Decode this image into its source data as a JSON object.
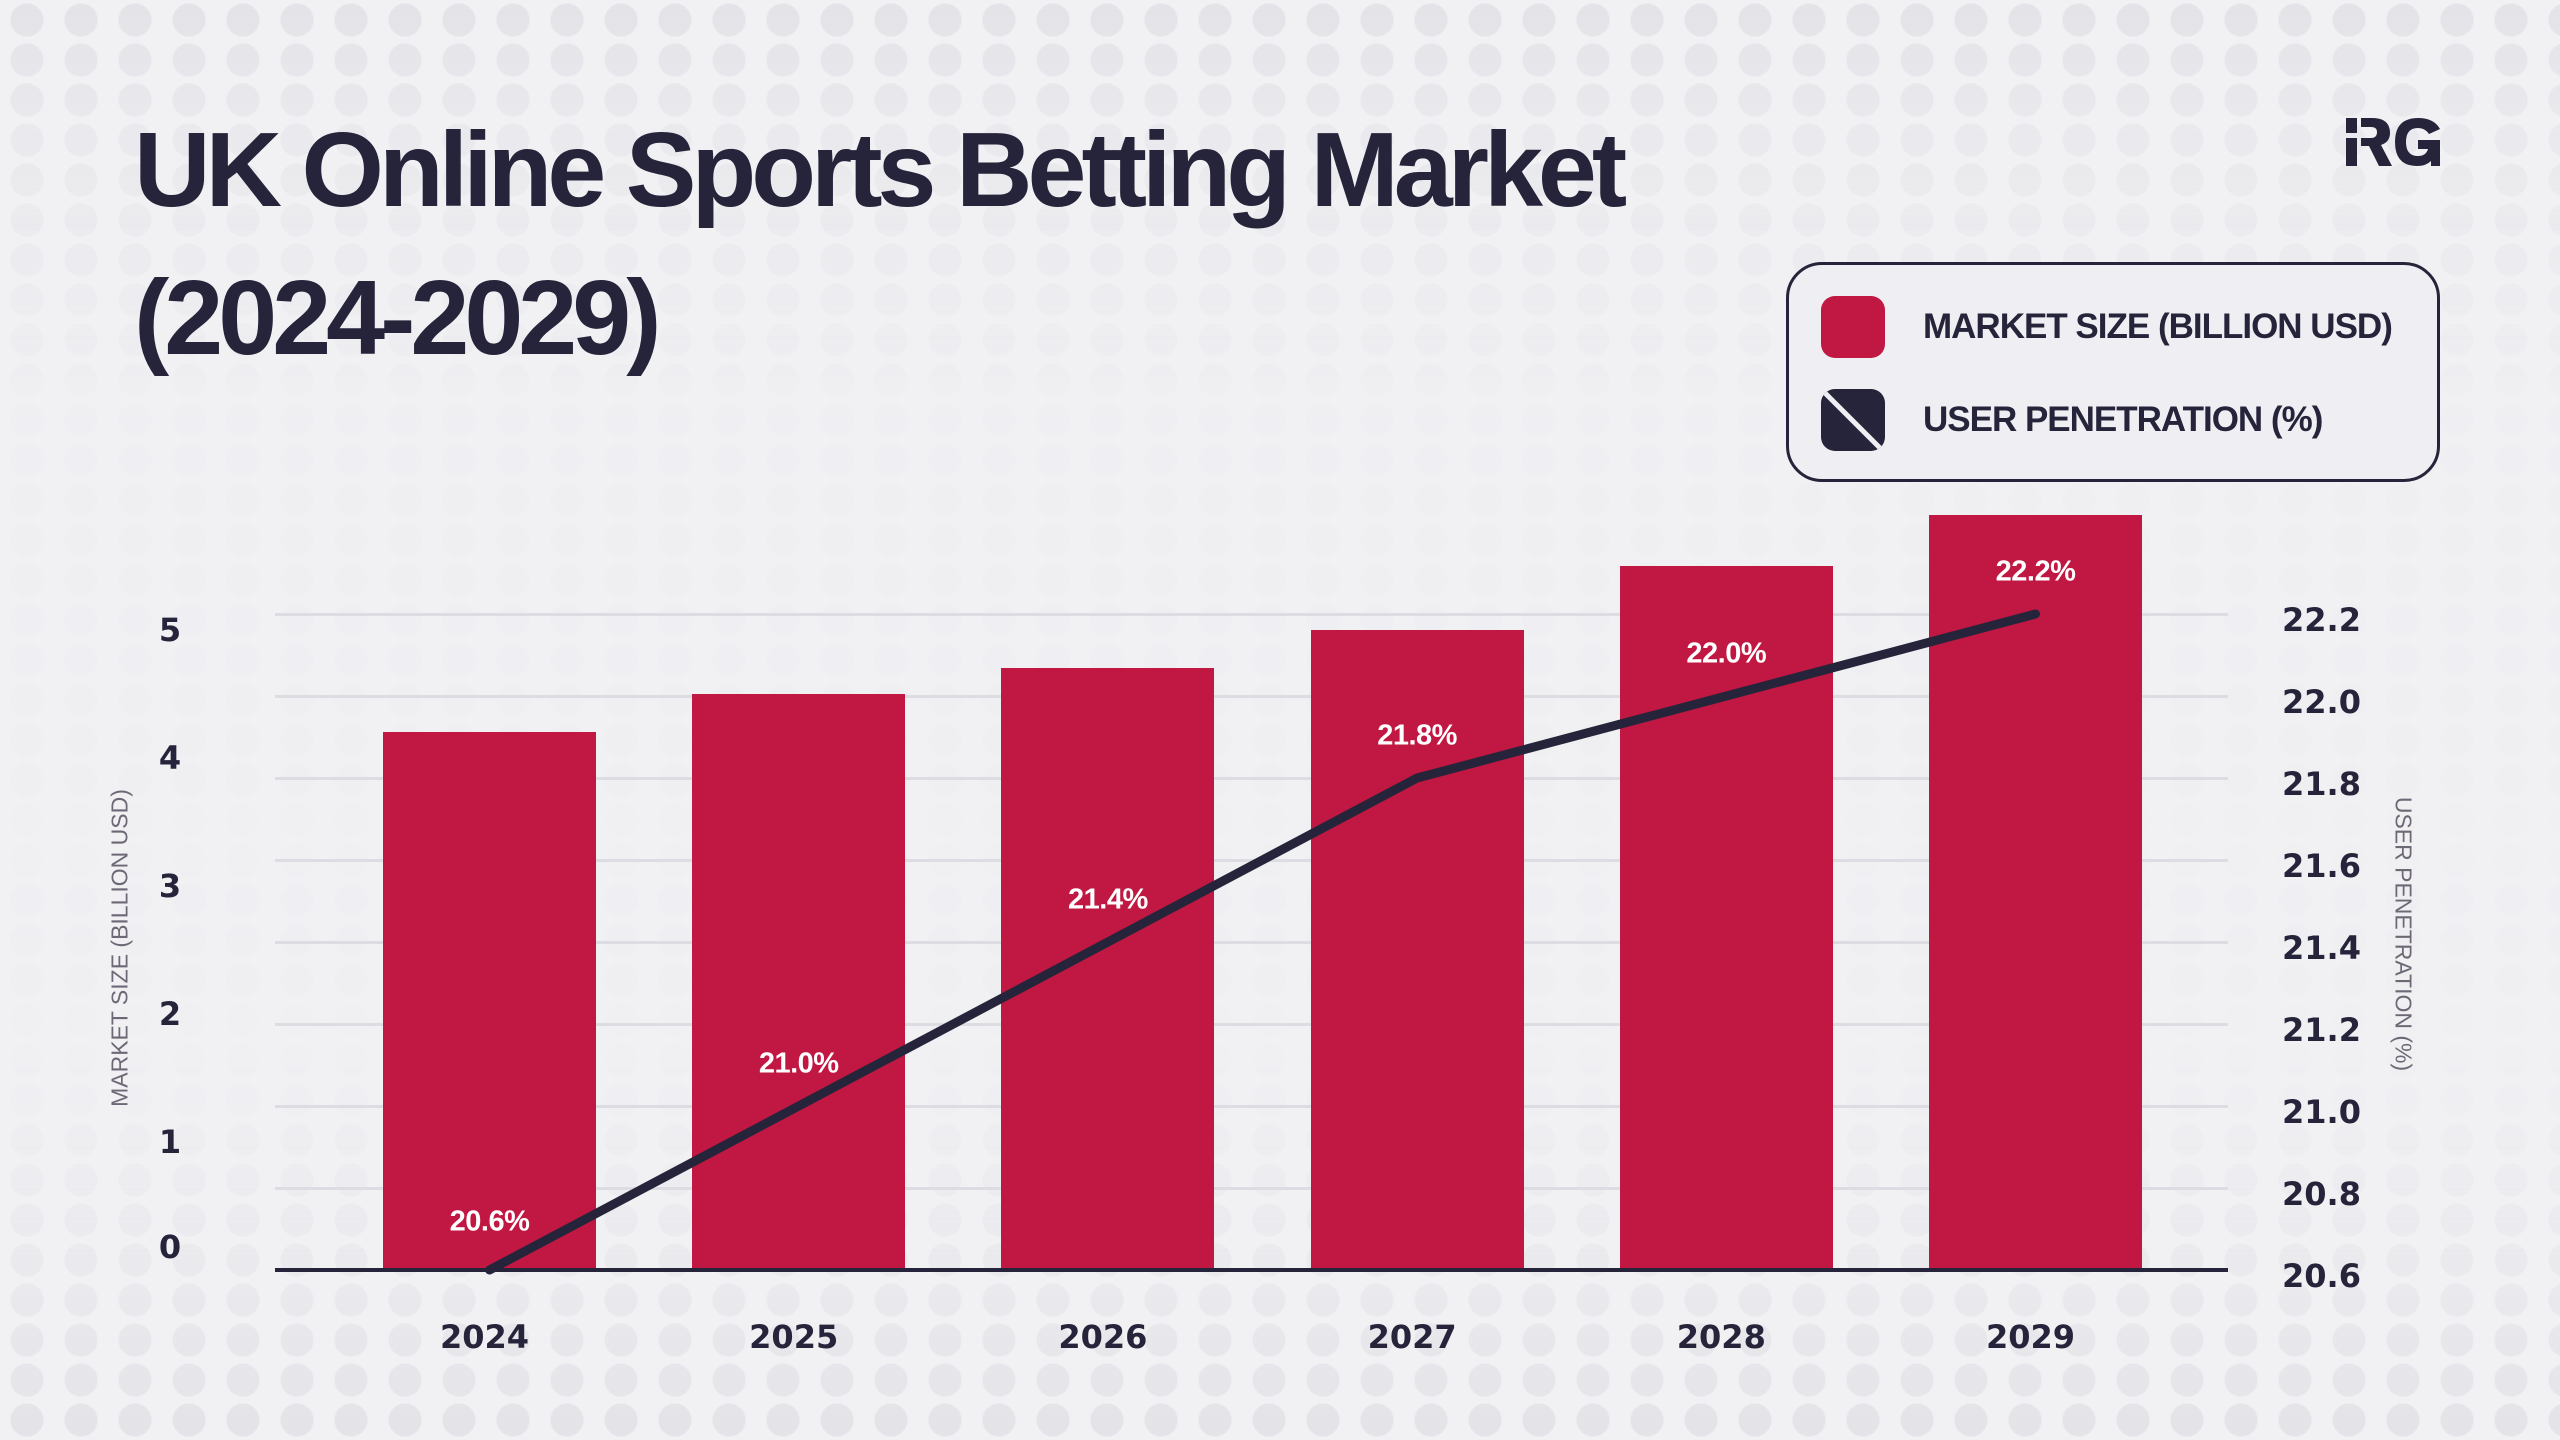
{
  "title": {
    "line1": "UK Online Sports Betting Market",
    "line2": "(2024-2029)"
  },
  "logo": {
    "text": "RG",
    "icon": "rg-logo-icon"
  },
  "legend": {
    "items": [
      {
        "label": "MARKET SIZE (BILLION USD)",
        "icon": "red-square-swatch-icon",
        "color": "#c01842"
      },
      {
        "label": "USER PENETRATION (%)",
        "icon": "navy-slashed-square-swatch-icon",
        "color": "#26243a"
      }
    ]
  },
  "colors": {
    "bar": "#c01842",
    "line": "#26243a",
    "text": "#26243a",
    "axis_title": "#6e6876",
    "grid": "#dcdce2",
    "background": "#f1f1f4"
  },
  "chart_data": {
    "type": "bar+line",
    "title": "UK Online Sports Betting Market (2024-2029)",
    "categories": [
      "2024",
      "2025",
      "2026",
      "2027",
      "2028",
      "2029"
    ],
    "series": [
      {
        "name": "MARKET SIZE (BILLION USD)",
        "type": "bar",
        "axis": "left",
        "values": [
          4.2,
          4.5,
          4.7,
          5.0,
          5.5,
          5.9
        ]
      },
      {
        "name": "USER PENETRATION (%)",
        "type": "line",
        "axis": "right",
        "values": [
          20.6,
          21.0,
          21.4,
          21.8,
          22.0,
          22.2
        ],
        "data_labels": [
          "20.6%",
          "21.0%",
          "21.4%",
          "21.8%",
          "22.0%",
          "22.2%"
        ]
      }
    ],
    "xlabel": "",
    "ylabel": "MARKET SIZE (BILLION USD)",
    "ylabel_right": "USER PENETRATION (%)",
    "yticks_left": [
      "0",
      "1",
      "2",
      "3",
      "4",
      "5"
    ],
    "yticks_right": [
      "20.6",
      "20.8",
      "21.0",
      "21.2",
      "21.4",
      "21.6",
      "21.8",
      "22.0",
      "22.2"
    ],
    "ylim": [
      0,
      5
    ],
    "ylim_right": [
      20.6,
      22.2
    ],
    "grid": true,
    "legend_position": "top-right"
  }
}
